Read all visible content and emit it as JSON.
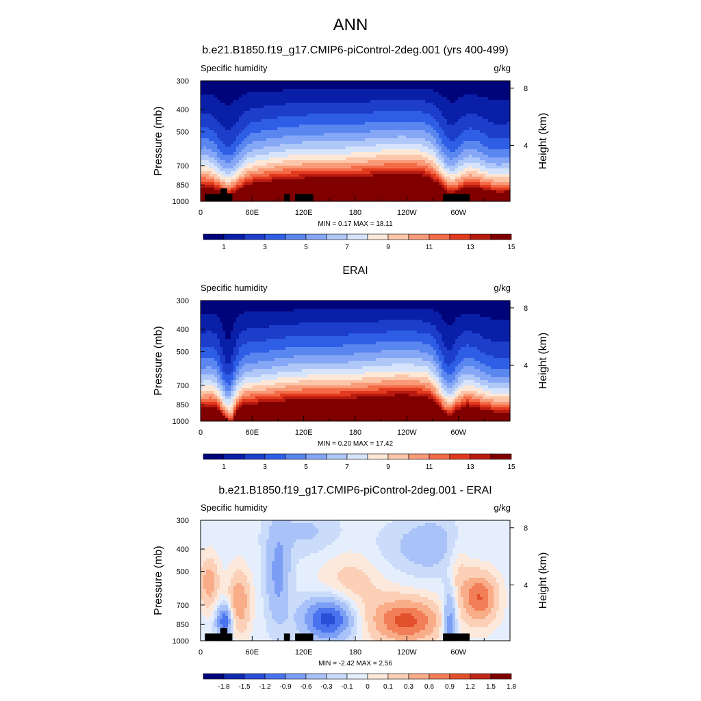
{
  "figure": {
    "title": "ANN",
    "colors": {
      "abs_fill": [
        "#00047a",
        "#0a1fa8",
        "#1c3ecb",
        "#2f5ee6",
        "#5a86f0",
        "#86a7f5",
        "#b0c8f8",
        "#d6e4fb",
        "#fde8d8",
        "#fcc6aa",
        "#f99a78",
        "#f46b48",
        "#e23a1e",
        "#b81a10",
        "#800000"
      ],
      "diff_fill": [
        "#00047a",
        "#0f2aaf",
        "#2a4ed6",
        "#4a74ef",
        "#7c9ff5",
        "#a9c2f8",
        "#cbdcfb",
        "#e5eefd",
        "#fde9dc",
        "#fbd0b6",
        "#f8ac88",
        "#f27e58",
        "#e3502c",
        "#c0281a",
        "#800000"
      ],
      "land": "#000000"
    }
  },
  "panels": [
    {
      "title": "b.e21.B1850.f19_g17.CMIP6-piControl-2deg.001 (yrs 400-499)",
      "left_label": "Specific humidity",
      "right_label": "g/kg",
      "y_axis_label": "Pressure (mb)",
      "y2_axis_label": "Height (km)",
      "y_ticks": [
        "300",
        "400",
        "500",
        "700",
        "850",
        "1000"
      ],
      "y2_ticks": [
        "8",
        "4"
      ],
      "x_ticks": [
        "0",
        "60E",
        "120E",
        "180",
        "120W",
        "60W"
      ],
      "minmax": "MIN =   0.17  MAX =  18.11",
      "colorbar_labels": [
        "1",
        "3",
        "5",
        "7",
        "9",
        "11",
        "13",
        "15"
      ]
    },
    {
      "title": "ERAI",
      "left_label": "Specific humidity",
      "right_label": "g/kg",
      "y_axis_label": "Pressure (mb)",
      "y2_axis_label": "Height (km)",
      "y_ticks": [
        "300",
        "400",
        "500",
        "700",
        "850",
        "1000"
      ],
      "y2_ticks": [
        "8",
        "4"
      ],
      "x_ticks": [
        "0",
        "60E",
        "120E",
        "180",
        "120W",
        "60W"
      ],
      "minmax": "MIN =   0.20  MAX =  17.42",
      "colorbar_labels": [
        "1",
        "3",
        "5",
        "7",
        "9",
        "11",
        "13",
        "15"
      ]
    },
    {
      "title": "b.e21.B1850.f19_g17.CMIP6-piControl-2deg.001 - ERAI",
      "left_label": "Specific humidity",
      "right_label": "g/kg",
      "y_axis_label": "Pressure (mb)",
      "y2_axis_label": "Height (km)",
      "y_ticks": [
        "300",
        "400",
        "500",
        "700",
        "850",
        "1000"
      ],
      "y2_ticks": [
        "8",
        "4"
      ],
      "x_ticks": [
        "0",
        "60E",
        "120E",
        "180",
        "120W",
        "60W"
      ],
      "minmax": "MIN =  -2.42  MAX =   2.56",
      "colorbar_labels": [
        "-1.8",
        "-1.5",
        "-1.2",
        "-0.9",
        "-0.6",
        "-0.3",
        "-0.1",
        "0",
        "0.1",
        "0.3",
        "0.6",
        "0.9",
        "1.2",
        "1.5",
        "1.8"
      ]
    }
  ],
  "chart_data": [
    {
      "type": "heatmap",
      "title": "b.e21.B1850.f19_g17.CMIP6-piControl-2deg.001 (yrs 400-499)",
      "variable": "Specific humidity",
      "units": "g/kg",
      "xlabel": "",
      "ylabel": "Pressure (mb)",
      "y2label": "Height (km)",
      "xlim": [
        0,
        360
      ],
      "ylim": [
        1000,
        300
      ],
      "y_scale": "log",
      "x_ticks": [
        0,
        60,
        120,
        180,
        240,
        300
      ],
      "y_ticks": [
        300,
        400,
        500,
        700,
        850,
        1000
      ],
      "min": 0.17,
      "max": 18.11,
      "contour_levels": [
        0,
        1,
        2,
        3,
        4,
        5,
        6,
        7,
        8,
        9,
        10,
        11,
        12,
        13,
        14,
        15,
        16
      ],
      "land_mask": true
    },
    {
      "type": "heatmap",
      "title": "ERAI",
      "variable": "Specific humidity",
      "units": "g/kg",
      "xlabel": "",
      "ylabel": "Pressure (mb)",
      "y2label": "Height (km)",
      "xlim": [
        0,
        360
      ],
      "ylim": [
        1000,
        300
      ],
      "y_scale": "log",
      "x_ticks": [
        0,
        60,
        120,
        180,
        240,
        300
      ],
      "y_ticks": [
        300,
        400,
        500,
        700,
        850,
        1000
      ],
      "min": 0.2,
      "max": 17.42,
      "contour_levels": [
        0,
        1,
        2,
        3,
        4,
        5,
        6,
        7,
        8,
        9,
        10,
        11,
        12,
        13,
        14,
        15,
        16
      ],
      "land_mask": false
    },
    {
      "type": "heatmap",
      "title": "b.e21.B1850.f19_g17.CMIP6-piControl-2deg.001 - ERAI",
      "variable": "Specific humidity",
      "units": "g/kg",
      "xlabel": "",
      "ylabel": "Pressure (mb)",
      "y2label": "Height (km)",
      "xlim": [
        0,
        360
      ],
      "ylim": [
        1000,
        300
      ],
      "y_scale": "log",
      "x_ticks": [
        0,
        60,
        120,
        180,
        240,
        300
      ],
      "y_ticks": [
        300,
        400,
        500,
        700,
        850,
        1000
      ],
      "min": -2.42,
      "max": 2.56,
      "contour_levels": [
        -1.8,
        -1.5,
        -1.2,
        -0.9,
        -0.6,
        -0.3,
        -0.1,
        0,
        0.1,
        0.3,
        0.6,
        0.9,
        1.2,
        1.5,
        1.8
      ],
      "land_mask": true
    }
  ]
}
